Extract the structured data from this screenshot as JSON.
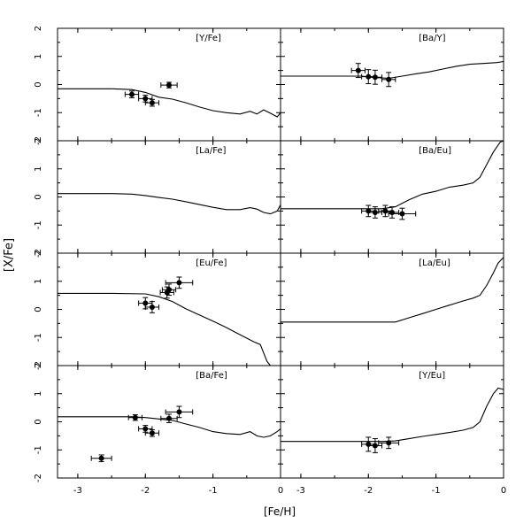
{
  "figure": {
    "ylabel": "[X/Fe]",
    "xlabel": "[Fe/H]",
    "x_ticks": [
      "-3",
      "-2",
      "-1",
      "0"
    ],
    "x_tick_values": [
      -3,
      -2,
      -1,
      0
    ],
    "y_tick_values": [
      -2,
      -1,
      0,
      1,
      2
    ],
    "y_tick_labels": [
      "-2",
      "-1",
      "0",
      "1",
      "2"
    ]
  },
  "chart_data": [
    {
      "type": "line",
      "panel_label": "[Y/Fe]",
      "xlim": [
        -3.3,
        0
      ],
      "ylim": [
        -2,
        2
      ],
      "model_line": {
        "x": [
          -3.3,
          -2.5,
          -2.2,
          -2.0,
          -1.8,
          -1.6,
          -1.4,
          -1.2,
          -1.0,
          -0.8,
          -0.6,
          -0.45,
          -0.35,
          -0.25,
          -0.15,
          -0.05,
          0
        ],
        "y": [
          -0.15,
          -0.15,
          -0.18,
          -0.28,
          -0.45,
          -0.52,
          -0.65,
          -0.8,
          -0.93,
          -1.0,
          -1.05,
          -0.95,
          -1.05,
          -0.9,
          -1.02,
          -1.15,
          -1.0
        ]
      },
      "points": [
        {
          "x": -2.2,
          "y": -0.35,
          "xerr": 0.1,
          "yerr": 0.12
        },
        {
          "x": -2.0,
          "y": -0.5,
          "xerr": 0.1,
          "yerr": 0.12
        },
        {
          "x": -1.9,
          "y": -0.65,
          "xerr": 0.1,
          "yerr": 0.12
        },
        {
          "x": -1.65,
          "y": -0.02,
          "xerr": 0.12,
          "yerr": 0.1
        }
      ]
    },
    {
      "type": "line",
      "panel_label": "[Ba/Y]",
      "xlim": [
        -3.3,
        0
      ],
      "ylim": [
        -2,
        2
      ],
      "model_line": {
        "x": [
          -3.3,
          -2.5,
          -2.1,
          -1.9,
          -1.7,
          -1.5,
          -1.3,
          -1.1,
          -0.9,
          -0.7,
          -0.5,
          -0.3,
          -0.1,
          0
        ],
        "y": [
          0.3,
          0.3,
          0.3,
          0.25,
          0.22,
          0.3,
          0.38,
          0.45,
          0.55,
          0.65,
          0.72,
          0.75,
          0.78,
          0.82
        ]
      },
      "points": [
        {
          "x": -2.15,
          "y": 0.5,
          "xerr": 0.1,
          "yerr": 0.25
        },
        {
          "x": -2.0,
          "y": 0.28,
          "xerr": 0.1,
          "yerr": 0.25
        },
        {
          "x": -1.9,
          "y": 0.26,
          "xerr": 0.1,
          "yerr": 0.25
        },
        {
          "x": -1.7,
          "y": 0.18,
          "xerr": 0.1,
          "yerr": 0.25
        }
      ]
    },
    {
      "type": "line",
      "panel_label": "[La/Fe]",
      "xlim": [
        -3.3,
        0
      ],
      "ylim": [
        -2,
        2
      ],
      "model_line": {
        "x": [
          -3.3,
          -2.5,
          -2.2,
          -2.0,
          -1.8,
          -1.6,
          -1.4,
          -1.2,
          -1.0,
          -0.8,
          -0.6,
          -0.45,
          -0.35,
          -0.25,
          -0.15,
          -0.05,
          0
        ],
        "y": [
          0.12,
          0.12,
          0.1,
          0.05,
          -0.02,
          -0.08,
          -0.17,
          -0.27,
          -0.37,
          -0.45,
          -0.45,
          -0.38,
          -0.43,
          -0.55,
          -0.6,
          -0.5,
          -0.28
        ]
      },
      "points": []
    },
    {
      "type": "line",
      "panel_label": "[Ba/Eu]",
      "xlim": [
        -3.3,
        0
      ],
      "ylim": [
        -2,
        2
      ],
      "model_line": {
        "x": [
          -3.3,
          -2.5,
          -2.0,
          -1.8,
          -1.6,
          -1.4,
          -1.2,
          -1.0,
          -0.8,
          -0.6,
          -0.45,
          -0.35,
          -0.25,
          -0.15,
          -0.05,
          0
        ],
        "y": [
          -0.42,
          -0.42,
          -0.42,
          -0.42,
          -0.35,
          -0.1,
          0.1,
          0.2,
          0.35,
          0.42,
          0.5,
          0.7,
          1.15,
          1.6,
          1.95,
          2.0
        ]
      },
      "points": [
        {
          "x": -2.0,
          "y": -0.5,
          "xerr": 0.1,
          "yerr": 0.2
        },
        {
          "x": -1.9,
          "y": -0.55,
          "xerr": 0.1,
          "yerr": 0.2
        },
        {
          "x": -1.75,
          "y": -0.5,
          "xerr": 0.1,
          "yerr": 0.2
        },
        {
          "x": -1.65,
          "y": -0.55,
          "xerr": 0.1,
          "yerr": 0.2
        },
        {
          "x": -1.5,
          "y": -0.6,
          "xerr": 0.2,
          "yerr": 0.2
        }
      ]
    },
    {
      "type": "line",
      "panel_label": "[Eu/Fe]",
      "xlim": [
        -3.3,
        0
      ],
      "ylim": [
        -2,
        2
      ],
      "model_line": {
        "x": [
          -3.3,
          -2.5,
          -2.0,
          -1.8,
          -1.6,
          -1.4,
          -1.2,
          -1.0,
          -0.8,
          -0.6,
          -0.4,
          -0.3,
          -0.25,
          -0.2,
          -0.15
        ],
        "y": [
          0.57,
          0.57,
          0.55,
          0.45,
          0.28,
          0.02,
          -0.2,
          -0.42,
          -0.65,
          -0.9,
          -1.15,
          -1.25,
          -1.55,
          -1.85,
          -2.0
        ]
      },
      "points": [
        {
          "x": -2.0,
          "y": 0.22,
          "xerr": 0.1,
          "yerr": 0.2
        },
        {
          "x": -1.9,
          "y": 0.08,
          "xerr": 0.1,
          "yerr": 0.2
        },
        {
          "x": -1.68,
          "y": 0.6,
          "xerr": 0.1,
          "yerr": 0.2
        },
        {
          "x": -1.65,
          "y": 0.7,
          "xerr": 0.1,
          "yerr": 0.2
        },
        {
          "x": -1.5,
          "y": 0.95,
          "xerr": 0.2,
          "yerr": 0.2
        }
      ]
    },
    {
      "type": "line",
      "panel_label": "[La/Eu]",
      "xlim": [
        -3.3,
        0
      ],
      "ylim": [
        -2,
        2
      ],
      "model_line": {
        "x": [
          -3.3,
          -2.5,
          -2.0,
          -1.6,
          -1.4,
          -1.2,
          -1.0,
          -0.8,
          -0.6,
          -0.45,
          -0.35,
          -0.25,
          -0.15,
          -0.08,
          0
        ],
        "y": [
          -0.45,
          -0.45,
          -0.45,
          -0.45,
          -0.3,
          -0.15,
          0.0,
          0.15,
          0.3,
          0.4,
          0.5,
          0.85,
          1.3,
          1.65,
          1.85
        ]
      },
      "points": []
    },
    {
      "type": "line",
      "panel_label": "[Ba/Fe]",
      "xlim": [
        -3.3,
        0
      ],
      "ylim": [
        -2,
        2
      ],
      "model_line": {
        "x": [
          -3.3,
          -2.5,
          -2.2,
          -2.0,
          -1.8,
          -1.6,
          -1.4,
          -1.2,
          -1.0,
          -0.8,
          -0.6,
          -0.45,
          -0.35,
          -0.25,
          -0.15,
          -0.05,
          0
        ],
        "y": [
          0.18,
          0.18,
          0.18,
          0.15,
          0.1,
          0.05,
          -0.08,
          -0.2,
          -0.35,
          -0.42,
          -0.45,
          -0.35,
          -0.5,
          -0.55,
          -0.5,
          -0.35,
          -0.25
        ]
      },
      "points": [
        {
          "x": -2.65,
          "y": -1.3,
          "xerr": 0.15,
          "yerr": 0.12
        },
        {
          "x": -2.15,
          "y": 0.15,
          "xerr": 0.1,
          "yerr": 0.1
        },
        {
          "x": -2.0,
          "y": -0.25,
          "xerr": 0.1,
          "yerr": 0.12
        },
        {
          "x": -1.9,
          "y": -0.4,
          "xerr": 0.1,
          "yerr": 0.12
        },
        {
          "x": -1.65,
          "y": 0.12,
          "xerr": 0.12,
          "yerr": 0.15
        },
        {
          "x": -1.5,
          "y": 0.35,
          "xerr": 0.2,
          "yerr": 0.2
        }
      ]
    },
    {
      "type": "line",
      "panel_label": "[Y/Eu]",
      "xlim": [
        -3.3,
        0
      ],
      "ylim": [
        -2,
        2
      ],
      "model_line": {
        "x": [
          -3.3,
          -2.5,
          -2.0,
          -1.8,
          -1.6,
          -1.4,
          -1.2,
          -1.0,
          -0.8,
          -0.6,
          -0.45,
          -0.35,
          -0.25,
          -0.15,
          -0.08,
          0
        ],
        "y": [
          -0.7,
          -0.7,
          -0.7,
          -0.7,
          -0.68,
          -0.6,
          -0.52,
          -0.45,
          -0.38,
          -0.3,
          -0.2,
          0.0,
          0.55,
          1.0,
          1.2,
          1.15
        ]
      },
      "points": [
        {
          "x": -2.0,
          "y": -0.8,
          "xerr": 0.1,
          "yerr": 0.25
        },
        {
          "x": -1.9,
          "y": -0.85,
          "xerr": 0.1,
          "yerr": 0.25
        },
        {
          "x": -1.7,
          "y": -0.75,
          "xerr": 0.15,
          "yerr": 0.2
        }
      ]
    }
  ]
}
